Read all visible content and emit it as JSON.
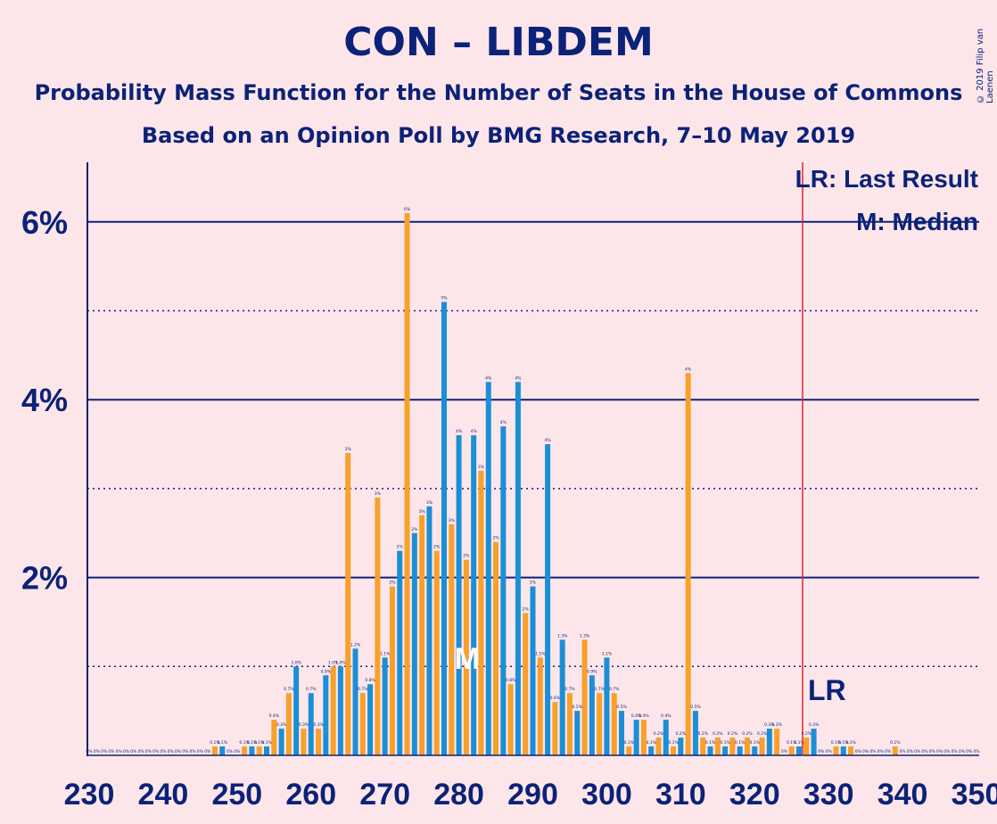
{
  "title": "CON – LIBDEM",
  "subtitle1": "Probability Mass Function for the Number of Seats in the House of Commons",
  "subtitle2": "Based on an Opinion Poll by BMG Research, 7–10 May 2019",
  "copyright": "© 2019 Filip van Laenen",
  "legend": {
    "last_result": "LR: Last Result",
    "median": "M: Median"
  },
  "lr_label": "LR",
  "median_label": "M",
  "colors": {
    "blue": "#1b8fd6",
    "orange": "#f7a02c",
    "navy": "#0c2278",
    "red": "#e0242f",
    "background": "#fde6ea"
  },
  "chart_data": {
    "type": "bar",
    "xlim": [
      230,
      350
    ],
    "ylim": [
      0,
      6.5
    ],
    "yunit": "%",
    "y_major_ticks": [
      2,
      4,
      6
    ],
    "y_minor_ticks": [
      1,
      3,
      5
    ],
    "y_tick_labels": [
      "2%",
      "4%",
      "6%"
    ],
    "x_tick_labels": [
      "230",
      "240",
      "250",
      "260",
      "270",
      "280",
      "290",
      "300",
      "310",
      "320",
      "330",
      "340",
      "350"
    ],
    "last_result": 326,
    "median": 281,
    "series": [
      {
        "color": "blue",
        "x": [
          230,
          232,
          234,
          236,
          238,
          240,
          242,
          244,
          246,
          248,
          250,
          252,
          254,
          256,
          258,
          260,
          262,
          264,
          266,
          268,
          270,
          272,
          274,
          276,
          278,
          280,
          282,
          284,
          286,
          288,
          290,
          292,
          294,
          296,
          298,
          300,
          302,
          304,
          306,
          308,
          310,
          312,
          314,
          316,
          318,
          320,
          322,
          324,
          326,
          328,
          330,
          332,
          334,
          336,
          338,
          340,
          342,
          344,
          346,
          348,
          350
        ],
        "values": [
          0,
          0,
          0,
          0,
          0,
          0,
          0,
          0,
          0,
          0.1,
          0,
          0.1,
          0.1,
          0.3,
          1.0,
          0.7,
          0.9,
          1.0,
          1.2,
          0.8,
          1.1,
          2.3,
          2.5,
          2.8,
          5.1,
          3.6,
          3.6,
          4.2,
          3.7,
          4.2,
          1.9,
          3.5,
          1.3,
          0.5,
          0.9,
          1.1,
          0.5,
          0.4,
          0.1,
          0.4,
          0.2,
          0.5,
          0.1,
          0.1,
          0.1,
          0.1,
          0.3,
          0,
          0.1,
          0.3,
          0,
          0.1,
          0,
          0,
          0,
          0,
          0,
          0,
          0,
          0,
          0
        ],
        "labels": [
          "0%",
          "0%",
          "0%",
          "0%",
          "0%",
          "0%",
          "0%",
          "0%",
          "0%",
          "0.1%",
          "0%",
          "0.1%",
          "0.1%",
          "0.3%",
          "1.0%",
          "0.7%",
          "0.9%",
          "1.0%",
          "1.2%",
          "0.8%",
          "1.1%",
          "2%",
          "2%",
          "3%",
          "5%",
          "4%",
          "4%",
          "4%",
          "4%",
          "4%",
          "2%",
          "4%",
          "1.3%",
          "0.5%",
          "0.9%",
          "1.1%",
          "0.5%",
          "0.4%",
          "0.1%",
          "0.4%",
          "0.2%",
          "0.5%",
          "0.1%",
          "0.1%",
          "0.1%",
          "0.1%",
          "0.3%",
          "0%",
          "0.1%",
          "0.3%",
          "0%",
          "0.1%",
          "0%",
          "0%",
          "0%",
          "0%",
          "0%",
          "0%",
          "0%",
          "0%",
          "0%"
        ]
      },
      {
        "color": "orange",
        "x": [
          231,
          233,
          235,
          237,
          239,
          241,
          243,
          245,
          247,
          249,
          251,
          253,
          255,
          257,
          259,
          261,
          263,
          265,
          267,
          269,
          271,
          273,
          275,
          277,
          279,
          281,
          283,
          285,
          287,
          289,
          291,
          293,
          295,
          297,
          299,
          301,
          303,
          305,
          307,
          309,
          311,
          313,
          315,
          317,
          319,
          321,
          323,
          325,
          327,
          329,
          331,
          333,
          335,
          337,
          339,
          341,
          343,
          345,
          347,
          349
        ],
        "values": [
          0,
          0,
          0,
          0,
          0,
          0,
          0,
          0,
          0.1,
          0,
          0.1,
          0.1,
          0.4,
          0.7,
          0.3,
          0.3,
          1.0,
          3.4,
          0.7,
          2.9,
          1.9,
          6.1,
          2.7,
          2.3,
          2.6,
          2.2,
          3.2,
          2.4,
          0.8,
          1.6,
          1.1,
          0.6,
          0.7,
          1.3,
          0.7,
          0.7,
          0.1,
          0.4,
          0.2,
          0.1,
          4.3,
          0.2,
          0.2,
          0.2,
          0.2,
          0.2,
          0.3,
          0.1,
          0.2,
          0,
          0.1,
          0.1,
          0,
          0,
          0.1,
          0,
          0,
          0,
          0,
          0
        ],
        "labels": [
          "0%",
          "0%",
          "0%",
          "0%",
          "0%",
          "0%",
          "0%",
          "0%",
          "0.1%",
          "0%",
          "0.1%",
          "0.1%",
          "0.4%",
          "0.7%",
          "0.3%",
          "0.3%",
          "1.0%",
          "3%",
          "0.7%",
          "3%",
          "2%",
          "6%",
          "3%",
          "2%",
          "3%",
          "2%",
          "3%",
          "2%",
          "0.8%",
          "2%",
          "1.1%",
          "0.6%",
          "0.7%",
          "1.3%",
          "0.7%",
          "0.7%",
          "0.1%",
          "0.4%",
          "0.2%",
          "0.1%",
          "4%",
          "0.2%",
          "0.2%",
          "0.2%",
          "0.2%",
          "0.2%",
          "0.3%",
          "0.1%",
          "0.2%",
          "0%",
          "0.1%",
          "0.1%",
          "0%",
          "0%",
          "0.1%",
          "0%",
          "0%",
          "0%",
          "0%",
          "0%"
        ]
      }
    ]
  }
}
